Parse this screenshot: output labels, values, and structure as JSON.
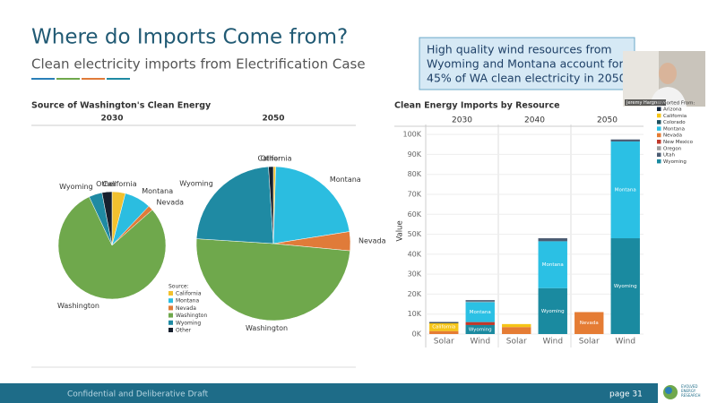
{
  "slide": {
    "title": "Where do Imports Come from?",
    "subtitle": "Clean electricity imports from Electrification Case",
    "callout": [
      "High quality wind resources from",
      "Wyoming and Montana account for",
      "45% of WA clean electricity in 2050"
    ],
    "webcam_name": "Jeremy Hargreaves",
    "footer": "Confidential and Deliberative Draft",
    "page": "page  31",
    "logo": [
      "EVOLVED",
      "ENERGY",
      "RESEARCH"
    ]
  },
  "chart_data": [
    {
      "type": "pie",
      "title": "Source of Washington's Clean Energy",
      "subtitle": "2030",
      "legend_title": "Source:",
      "categories": [
        "California",
        "Montana",
        "Nevada",
        "Washington",
        "Wyoming",
        "Other"
      ],
      "values": [
        4,
        8,
        1.5,
        79.5,
        4,
        3
      ],
      "colors": [
        "#f2c12e",
        "#2bbde0",
        "#e07b39",
        "#6fa84c",
        "#1f8aa3",
        "#17202e"
      ]
    },
    {
      "type": "pie",
      "subtitle": "2050",
      "categories": [
        "California",
        "Montana",
        "Nevada",
        "Washington",
        "Wyoming",
        "Other"
      ],
      "values": [
        0.5,
        22,
        4,
        49.5,
        23,
        1
      ],
      "colors": [
        "#f2c12e",
        "#2bbde0",
        "#e07b39",
        "#6fa84c",
        "#1f8aa3",
        "#17202e"
      ]
    },
    {
      "type": "stacked-bar",
      "title": "Clean Energy Imports by Resource",
      "y_label": "Value",
      "legend_title": "Imported From:",
      "groups": [
        "2030",
        "2040",
        "2050"
      ],
      "categories": [
        "Solar",
        "Wind",
        "Solar",
        "Wind",
        "Solar",
        "Wind"
      ],
      "series": [
        {
          "name": "Nevada",
          "color": "#e57c34",
          "values": [
            1500,
            0,
            3500,
            0,
            11000,
            0
          ]
        },
        {
          "name": "California",
          "color": "#f5c518",
          "values": [
            4000,
            0,
            1500,
            0,
            0,
            0
          ]
        },
        {
          "name": "Arizona",
          "color": "#10253f",
          "values": [
            500,
            0,
            0,
            0,
            0,
            0
          ]
        },
        {
          "name": "Colorado",
          "color": "#1d4f5e",
          "values": [
            0,
            0,
            0,
            0,
            0,
            0
          ]
        },
        {
          "name": "Wyoming",
          "color": "#1a8aa0",
          "values": [
            0,
            4500,
            0,
            23000,
            0,
            48000
          ]
        },
        {
          "name": "New Mexico",
          "color": "#c0392b",
          "values": [
            0,
            1500,
            0,
            0,
            0,
            0
          ]
        },
        {
          "name": "Montana",
          "color": "#2bc0e4",
          "values": [
            0,
            10000,
            0,
            23500,
            0,
            48500
          ]
        },
        {
          "name": "Oregon",
          "color": "#9e9e9e",
          "values": [
            0,
            300,
            0,
            0,
            0,
            0
          ]
        },
        {
          "name": "Utah",
          "color": "#4b5c73",
          "values": [
            0,
            700,
            0,
            1500,
            0,
            1000
          ]
        }
      ],
      "ylim": [
        0,
        105000
      ],
      "yticks": [
        {
          "value": 0,
          "label": "0K"
        },
        {
          "value": 10000,
          "label": "10K"
        },
        {
          "value": 20000,
          "label": "20K"
        },
        {
          "value": 30000,
          "label": "30K"
        },
        {
          "value": 40000,
          "label": "40K"
        },
        {
          "value": 50000,
          "label": "50K"
        },
        {
          "value": 60000,
          "label": "60K"
        },
        {
          "value": 70000,
          "label": "70K"
        },
        {
          "value": 80000,
          "label": "80K"
        },
        {
          "value": 90000,
          "label": "90K"
        },
        {
          "value": 100000,
          "label": "100K"
        }
      ],
      "legend_order": [
        "Arizona",
        "California",
        "Colorado",
        "Montana",
        "Nevada",
        "New Mexico",
        "Oregon",
        "Utah",
        "Wyoming"
      ],
      "grid": true
    }
  ]
}
